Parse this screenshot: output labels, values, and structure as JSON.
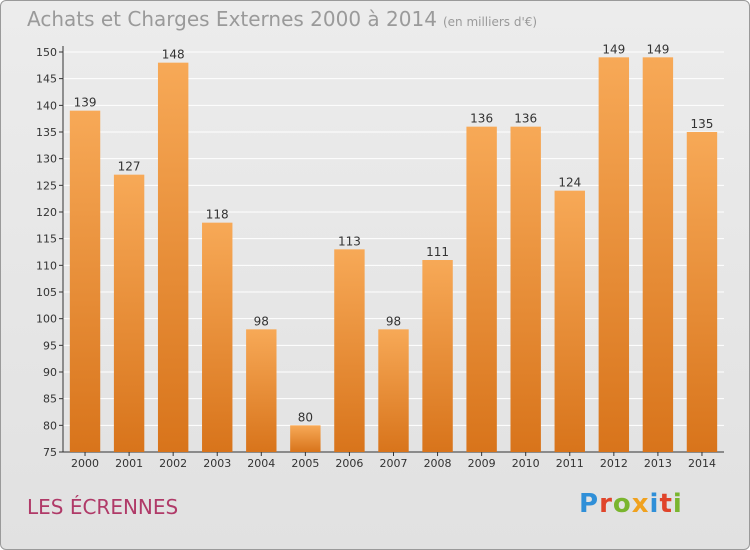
{
  "title": "Achats et Charges Externes 2000 à 2014",
  "unit": "(en milliers d'€)",
  "commune": "LES ÉCRENNES",
  "logo": {
    "text": "Proxiti",
    "colors": [
      "#2f8fd8",
      "#e0442a",
      "#7ab52e",
      "#f0a11e",
      "#2f8fd8",
      "#e0442a",
      "#7ab52e"
    ]
  },
  "colors": {
    "bar_top": "#f7a957",
    "bar_bottom": "#d8741b",
    "grid": "#ffffff",
    "axis": "#333333",
    "text": "#333333"
  },
  "chart_data": {
    "type": "bar",
    "categories": [
      "2000",
      "2001",
      "2002",
      "2003",
      "2004",
      "2005",
      "2006",
      "2007",
      "2008",
      "2009",
      "2010",
      "2011",
      "2012",
      "2013",
      "2014"
    ],
    "values": [
      139,
      127,
      148,
      118,
      98,
      80,
      113,
      98,
      111,
      136,
      136,
      124,
      149,
      149,
      135
    ],
    "ylim": [
      75,
      150
    ],
    "yticks": [
      75,
      80,
      85,
      90,
      95,
      100,
      105,
      110,
      115,
      120,
      125,
      130,
      135,
      140,
      145,
      150
    ],
    "grid": true,
    "xlabel": "",
    "ylabel": ""
  }
}
